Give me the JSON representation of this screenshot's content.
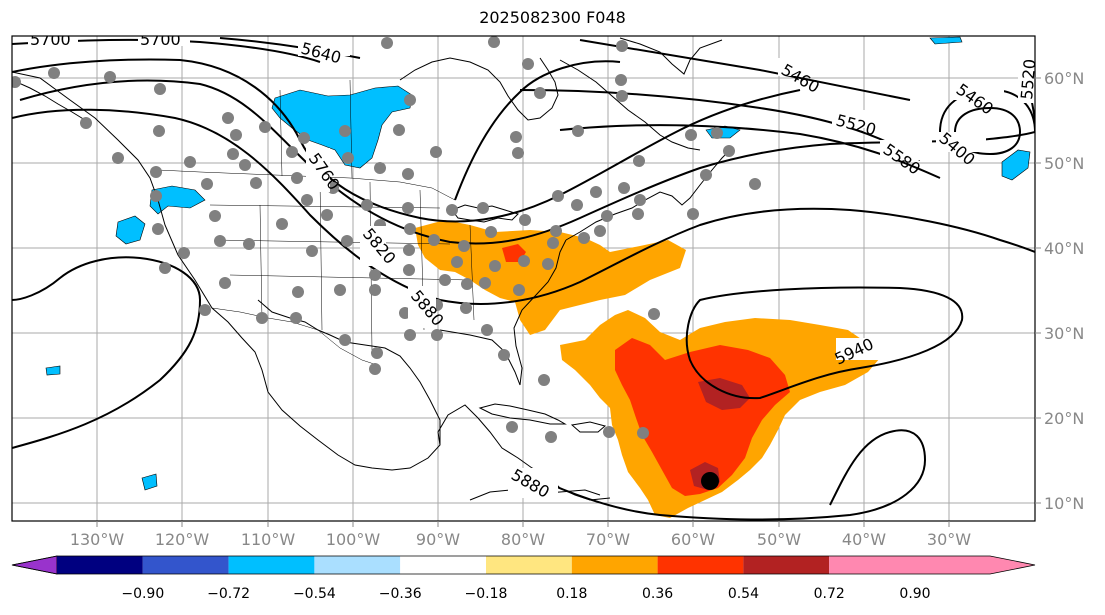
{
  "title": "2025082300 F048",
  "lon_labels": [
    "130°W",
    "120°W",
    "110°W",
    "100°W",
    "90°W",
    "80°W",
    "70°W",
    "60°W",
    "50°W",
    "40°W",
    "30°W"
  ],
  "lat_labels": [
    "60°N",
    "50°N",
    "40°N",
    "30°N",
    "20°N",
    "10°N"
  ],
  "contour_labels": [
    "5700",
    "5700",
    "5640",
    "5460",
    "5520",
    "5460",
    "5520",
    "5400",
    "5580",
    "5760",
    "5820",
    "5880",
    "5940",
    "5880"
  ],
  "colorbar": {
    "ticks": [
      "−0.90",
      "−0.72",
      "−0.54",
      "−0.36",
      "−0.18",
      "0.18",
      "0.36",
      "0.54",
      "0.72",
      "0.90"
    ],
    "colors": {
      "under": "#9933cc",
      "bins": [
        "#000080",
        "#3355cc",
        "#00bfff",
        "#aadfff",
        "#ffffff",
        "#ffe680",
        "#ffa500",
        "#ff3300",
        "#b22222",
        "#ff88b0"
      ]
    }
  },
  "colors": {
    "positive_low": "#ffa500",
    "positive_mid": "#ff3300",
    "positive_high": "#b22222",
    "negative": "#00bfff",
    "station": "#808080",
    "marker": "#000000"
  }
}
